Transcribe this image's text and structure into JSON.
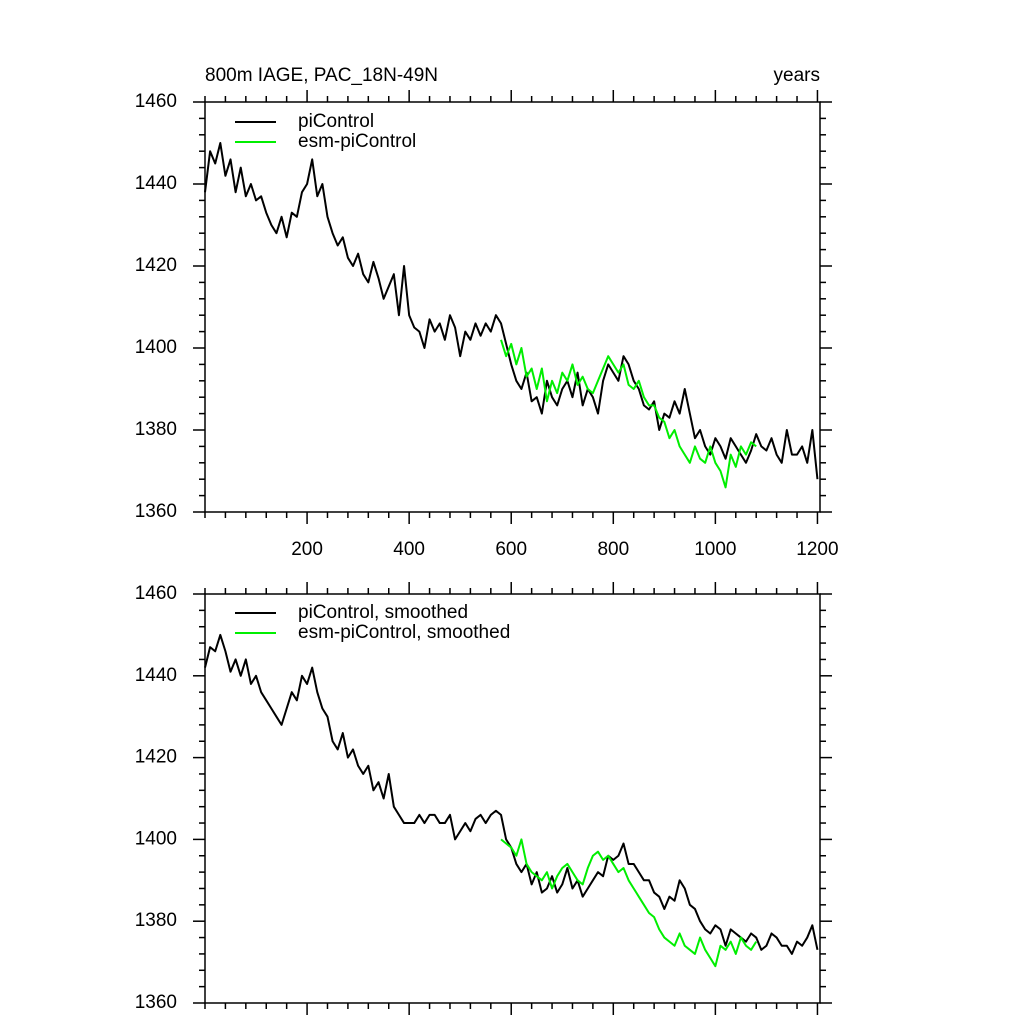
{
  "chart_data": [
    {
      "type": "line",
      "title": "800m IAGE, PAC_18N-49N",
      "right_title": "years",
      "x": [
        0,
        10,
        20,
        30,
        40,
        50,
        60,
        70,
        80,
        90,
        100,
        110,
        120,
        130,
        140,
        150,
        160,
        170,
        180,
        190,
        200,
        210,
        220,
        230,
        240,
        250,
        260,
        270,
        280,
        290,
        300,
        310,
        320,
        330,
        340,
        350,
        360,
        370,
        380,
        390,
        400,
        410,
        420,
        430,
        440,
        450,
        460,
        470,
        480,
        490,
        500,
        510,
        520,
        530,
        540,
        550,
        560,
        570,
        580,
        590,
        600,
        610,
        620,
        630,
        640,
        650,
        660,
        670,
        680,
        690,
        700,
        710,
        720,
        730,
        740,
        750,
        760,
        770,
        780,
        790,
        800,
        810,
        820,
        830,
        840,
        850,
        860,
        870,
        880,
        890,
        900,
        910,
        920,
        930,
        940,
        950,
        960,
        970,
        980,
        990,
        1000,
        1010,
        1020,
        1030,
        1040,
        1050,
        1060,
        1070,
        1080,
        1090,
        1100,
        1110,
        1120,
        1130,
        1140,
        1150,
        1160,
        1170,
        1180,
        1190,
        1200
      ],
      "series": [
        {
          "name": "piControl",
          "color": "#000000",
          "values": [
            1438,
            1448,
            1445,
            1450,
            1442,
            1446,
            1438,
            1444,
            1437,
            1440,
            1436,
            1437,
            1433,
            1430,
            1428,
            1432,
            1427,
            1433,
            1432,
            1438,
            1440,
            1446,
            1437,
            1440,
            1432,
            1428,
            1425,
            1427,
            1422,
            1420,
            1423,
            1418,
            1416,
            1421,
            1417,
            1412,
            1415,
            1418,
            1408,
            1420,
            1408,
            1405,
            1404,
            1400,
            1407,
            1404,
            1406,
            1402,
            1408,
            1405,
            1398,
            1404,
            1402,
            1406,
            1403,
            1406,
            1404,
            1408,
            1406,
            1401,
            1396,
            1392,
            1390,
            1394,
            1387,
            1388,
            1384,
            1392,
            1388,
            1386,
            1390,
            1392,
            1388,
            1394,
            1386,
            1390,
            1388,
            1384,
            1392,
            1396,
            1394,
            1392,
            1398,
            1396,
            1392,
            1390,
            1386,
            1385,
            1387,
            1380,
            1384,
            1383,
            1387,
            1384,
            1390,
            1384,
            1378,
            1380,
            1376,
            1374,
            1378,
            1376,
            1373,
            1378,
            1376,
            1374,
            1372,
            1375,
            1379,
            1376,
            1375,
            1378,
            1374,
            1372,
            1380,
            1374,
            1374,
            1376,
            1372,
            1380,
            1368
          ]
        },
        {
          "name": "esm-piControl",
          "color": "#00ee00",
          "values": [
            null,
            null,
            null,
            null,
            null,
            null,
            null,
            null,
            null,
            null,
            null,
            null,
            null,
            null,
            null,
            null,
            null,
            null,
            null,
            null,
            null,
            null,
            null,
            null,
            null,
            null,
            null,
            null,
            null,
            null,
            null,
            null,
            null,
            null,
            null,
            null,
            null,
            null,
            null,
            null,
            null,
            null,
            null,
            null,
            null,
            null,
            null,
            null,
            null,
            null,
            null,
            null,
            null,
            null,
            null,
            null,
            null,
            null,
            1402,
            1398,
            1401,
            1396,
            1400,
            1393,
            1395,
            1390,
            1395,
            1387,
            1392,
            1389,
            1394,
            1392,
            1396,
            1391,
            1393,
            1390,
            1389,
            1392,
            1395,
            1398,
            1396,
            1394,
            1396,
            1391,
            1390,
            1392,
            1388,
            1386,
            1386,
            1383,
            1382,
            1378,
            1380,
            1376,
            1374,
            1372,
            1376,
            1373,
            1372,
            1376,
            1372,
            1370,
            1366,
            1374,
            1371,
            1376,
            1374,
            1377,
            1376,
            null,
            null,
            null,
            null,
            null,
            null,
            null,
            null,
            null,
            null,
            null,
            null
          ]
        }
      ],
      "xlim": [
        0,
        1205
      ],
      "xticks": [
        200,
        400,
        600,
        800,
        1000,
        1200
      ],
      "ylim": [
        1360,
        1460
      ],
      "yticks": [
        1360,
        1380,
        1400,
        1420,
        1440,
        1460
      ]
    },
    {
      "type": "line",
      "x": [
        0,
        10,
        20,
        30,
        40,
        50,
        60,
        70,
        80,
        90,
        100,
        110,
        120,
        130,
        140,
        150,
        160,
        170,
        180,
        190,
        200,
        210,
        220,
        230,
        240,
        250,
        260,
        270,
        280,
        290,
        300,
        310,
        320,
        330,
        340,
        350,
        360,
        370,
        380,
        390,
        400,
        410,
        420,
        430,
        440,
        450,
        460,
        470,
        480,
        490,
        500,
        510,
        520,
        530,
        540,
        550,
        560,
        570,
        580,
        590,
        600,
        610,
        620,
        630,
        640,
        650,
        660,
        670,
        680,
        690,
        700,
        710,
        720,
        730,
        740,
        750,
        760,
        770,
        780,
        790,
        800,
        810,
        820,
        830,
        840,
        850,
        860,
        870,
        880,
        890,
        900,
        910,
        920,
        930,
        940,
        950,
        960,
        970,
        980,
        990,
        1000,
        1010,
        1020,
        1030,
        1040,
        1050,
        1060,
        1070,
        1080,
        1090,
        1100,
        1110,
        1120,
        1130,
        1140,
        1150,
        1160,
        1170,
        1180,
        1190,
        1200
      ],
      "series": [
        {
          "name": "piControl, smoothed",
          "color": "#000000",
          "values": [
            1442,
            1447,
            1446,
            1450,
            1446,
            1441,
            1444,
            1440,
            1444,
            1438,
            1440,
            1436,
            1434,
            1432,
            1430,
            1428,
            1432,
            1436,
            1434,
            1440,
            1438,
            1442,
            1436,
            1432,
            1430,
            1424,
            1422,
            1426,
            1420,
            1422,
            1418,
            1416,
            1418,
            1412,
            1414,
            1410,
            1416,
            1408,
            1406,
            1404,
            1404,
            1404,
            1406,
            1404,
            1406,
            1406,
            1404,
            1404,
            1406,
            1400,
            1402,
            1404,
            1402,
            1405,
            1406,
            1404,
            1406,
            1407,
            1406,
            1400,
            1398,
            1394,
            1392,
            1394,
            1389,
            1392,
            1387,
            1388,
            1391,
            1387,
            1389,
            1393,
            1388,
            1390,
            1386,
            1388,
            1390,
            1392,
            1391,
            1396,
            1395,
            1396,
            1399,
            1394,
            1394,
            1392,
            1390,
            1390,
            1387,
            1386,
            1383,
            1386,
            1385,
            1390,
            1388,
            1384,
            1383,
            1380,
            1378,
            1377,
            1379,
            1378,
            1374,
            1378,
            1377,
            1376,
            1375,
            1377,
            1376,
            1373,
            1374,
            1377,
            1376,
            1374,
            1374,
            1372,
            1375,
            1374,
            1376,
            1379,
            1373
          ]
        },
        {
          "name": "esm-piControl, smoothed",
          "color": "#00ee00",
          "values": [
            null,
            null,
            null,
            null,
            null,
            null,
            null,
            null,
            null,
            null,
            null,
            null,
            null,
            null,
            null,
            null,
            null,
            null,
            null,
            null,
            null,
            null,
            null,
            null,
            null,
            null,
            null,
            null,
            null,
            null,
            null,
            null,
            null,
            null,
            null,
            null,
            null,
            null,
            null,
            null,
            null,
            null,
            null,
            null,
            null,
            null,
            null,
            null,
            null,
            null,
            null,
            null,
            null,
            null,
            null,
            null,
            null,
            null,
            1400,
            1399,
            1398,
            1396,
            1400,
            1394,
            1392,
            1391,
            1390,
            1392,
            1388,
            1391,
            1393,
            1394,
            1392,
            1390,
            1389,
            1393,
            1396,
            1397,
            1395,
            1396,
            1394,
            1392,
            1393,
            1390,
            1388,
            1386,
            1384,
            1382,
            1381,
            1378,
            1376,
            1375,
            1374,
            1377,
            1374,
            1373,
            1372,
            1376,
            1373,
            1371,
            1369,
            1374,
            1373,
            1375,
            1372,
            1376,
            1374,
            1373,
            1375,
            null,
            null,
            null,
            null,
            null,
            null,
            null,
            null,
            null,
            null,
            null,
            null
          ]
        }
      ],
      "xlim": [
        0,
        1205
      ],
      "xticks": [
        200,
        400,
        600,
        800,
        1000,
        1200
      ],
      "ylim": [
        1360,
        1460
      ],
      "yticks": [
        1360,
        1380,
        1400,
        1420,
        1440,
        1460
      ]
    }
  ]
}
